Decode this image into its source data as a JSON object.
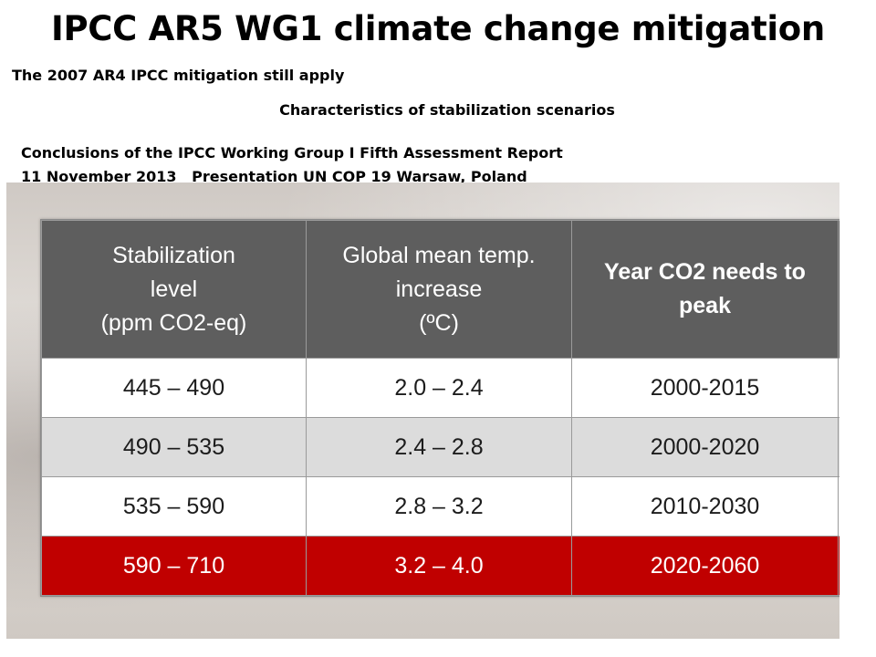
{
  "slide": {
    "title": "IPCC AR5 WG1 climate change mitigation",
    "subtitle": "The 2007 AR4 IPCC mitigation  still apply",
    "caption": "Characteristics of stabilization scenarios",
    "source_line1": "Conclusions of the IPCC Working Group I Fifth Assessment Report",
    "source_line2": "11 November 2013   Presentation UN COP 19 Warsaw, Poland"
  },
  "table": {
    "headers": [
      "Stabilization\nlevel\n(ppm CO2-eq)",
      "Global mean temp.\nincrease\n(ºC)",
      "Year CO2 needs to\npeak",
      ""
    ],
    "rows": [
      [
        "445 – 490",
        "2.0 – 2.4",
        "2000-2015",
        ""
      ],
      [
        "490 – 535",
        "2.4 – 2.8",
        "2000-2020",
        ""
      ],
      [
        "535 – 590",
        "2.8 – 3.2",
        "2010-2030",
        ""
      ],
      [
        "590 – 710",
        "3.2 – 4.0",
        "2020-2060",
        ""
      ]
    ],
    "colors": {
      "header_bg": "#5e5e5e",
      "row_white": "#ffffff",
      "row_gray": "#dcdcdc",
      "row_highlight": "#c00000"
    }
  }
}
